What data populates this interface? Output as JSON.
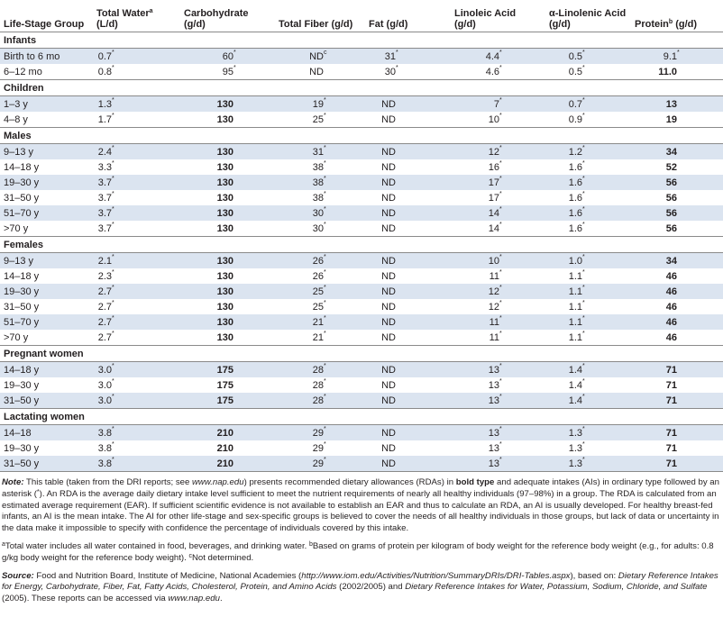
{
  "table": {
    "header": [
      {
        "text": "Life-Stage Group"
      },
      {
        "text": "Total Water",
        "sup": "a",
        "unit": "(L/d)"
      },
      {
        "text": "Carbohydrate",
        "unit": "(g/d)"
      },
      {
        "text": "Total Fiber (g/d)"
      },
      {
        "text": "Fat (g/d)"
      },
      {
        "text": "Linoleic Acid",
        "unit": "(g/d)"
      },
      {
        "text": "α-Linolenic Acid",
        "unit": "(g/d)"
      },
      {
        "text": "Protein",
        "sup": "b",
        "after": " (g/d)"
      }
    ],
    "sections": [
      {
        "title": "Infants",
        "rows": [
          {
            "group": "Birth to 6 mo",
            "cells": [
              {
                "text": "0.7",
                "sup": "*"
              },
              {
                "text": "60",
                "sup": "*"
              },
              {
                "text": "ND",
                "sup": "c"
              },
              {
                "text": "31",
                "sup": "*"
              },
              {
                "text": "4.4",
                "sup": "*"
              },
              {
                "text": "0.5",
                "sup": "*"
              },
              {
                "text": "9.1",
                "sup": "*"
              }
            ]
          },
          {
            "group": "6–12 mo",
            "cells": [
              {
                "text": "0.8",
                "sup": "*"
              },
              {
                "text": "95",
                "sup": "*"
              },
              {
                "text": "ND"
              },
              {
                "text": "30",
                "sup": "*"
              },
              {
                "text": "4.6",
                "sup": "*"
              },
              {
                "text": "0.5",
                "sup": "*"
              },
              {
                "text": "11.0",
                "bold": true
              }
            ]
          }
        ]
      },
      {
        "title": "Children",
        "rows": [
          {
            "group": "1–3 y",
            "cells": [
              {
                "text": "1.3",
                "sup": "*"
              },
              {
                "text": "130",
                "bold": true
              },
              {
                "text": "19",
                "sup": "*"
              },
              {
                "text": "ND"
              },
              {
                "text": "7",
                "sup": "*"
              },
              {
                "text": "0.7",
                "sup": "*"
              },
              {
                "text": "13",
                "bold": true
              }
            ]
          },
          {
            "group": "4–8 y",
            "cells": [
              {
                "text": "1.7",
                "sup": "*"
              },
              {
                "text": "130",
                "bold": true
              },
              {
                "text": "25",
                "sup": "*"
              },
              {
                "text": "ND"
              },
              {
                "text": "10",
                "sup": "*"
              },
              {
                "text": "0.9",
                "sup": "*"
              },
              {
                "text": "19",
                "bold": true
              }
            ]
          }
        ]
      },
      {
        "title": "Males",
        "rows": [
          {
            "group": "9–13 y",
            "cells": [
              {
                "text": "2.4",
                "sup": "*"
              },
              {
                "text": "130",
                "bold": true
              },
              {
                "text": "31",
                "sup": "*"
              },
              {
                "text": "ND"
              },
              {
                "text": "12",
                "sup": "*"
              },
              {
                "text": "1.2",
                "sup": "*"
              },
              {
                "text": "34",
                "bold": true
              }
            ]
          },
          {
            "group": "14–18 y",
            "cells": [
              {
                "text": "3.3",
                "sup": "*"
              },
              {
                "text": "130",
                "bold": true
              },
              {
                "text": "38",
                "sup": "*"
              },
              {
                "text": "ND"
              },
              {
                "text": "16",
                "sup": "*"
              },
              {
                "text": "1.6",
                "sup": "*"
              },
              {
                "text": "52",
                "bold": true
              }
            ]
          },
          {
            "group": "19–30 y",
            "cells": [
              {
                "text": "3.7",
                "sup": "*"
              },
              {
                "text": "130",
                "bold": true
              },
              {
                "text": "38",
                "sup": "*"
              },
              {
                "text": "ND"
              },
              {
                "text": "17",
                "sup": "*"
              },
              {
                "text": "1.6",
                "sup": "*"
              },
              {
                "text": "56",
                "bold": true
              }
            ]
          },
          {
            "group": "31–50 y",
            "cells": [
              {
                "text": "3.7",
                "sup": "*"
              },
              {
                "text": "130",
                "bold": true
              },
              {
                "text": "38",
                "sup": "*"
              },
              {
                "text": "ND"
              },
              {
                "text": "17",
                "sup": "*"
              },
              {
                "text": "1.6",
                "sup": "*"
              },
              {
                "text": "56",
                "bold": true
              }
            ]
          },
          {
            "group": "51–70 y",
            "cells": [
              {
                "text": "3.7",
                "sup": "*"
              },
              {
                "text": "130",
                "bold": true
              },
              {
                "text": "30",
                "sup": "*"
              },
              {
                "text": "ND"
              },
              {
                "text": "14",
                "sup": "*"
              },
              {
                "text": "1.6",
                "sup": "*"
              },
              {
                "text": "56",
                "bold": true
              }
            ]
          },
          {
            "group": ">70 y",
            "cells": [
              {
                "text": "3.7",
                "sup": "*"
              },
              {
                "text": "130",
                "bold": true
              },
              {
                "text": "30",
                "sup": "*"
              },
              {
                "text": "ND"
              },
              {
                "text": "14",
                "sup": "*"
              },
              {
                "text": "1.6",
                "sup": "*"
              },
              {
                "text": "56",
                "bold": true
              }
            ]
          }
        ]
      },
      {
        "title": "Females",
        "rows": [
          {
            "group": "9–13 y",
            "cells": [
              {
                "text": "2.1",
                "sup": "*"
              },
              {
                "text": "130",
                "bold": true
              },
              {
                "text": "26",
                "sup": "*"
              },
              {
                "text": "ND"
              },
              {
                "text": "10",
                "sup": "*"
              },
              {
                "text": "1.0",
                "sup": "*"
              },
              {
                "text": "34",
                "bold": true
              }
            ]
          },
          {
            "group": "14–18 y",
            "cells": [
              {
                "text": "2.3",
                "sup": "*"
              },
              {
                "text": "130",
                "bold": true
              },
              {
                "text": "26",
                "sup": "*"
              },
              {
                "text": "ND"
              },
              {
                "text": "11",
                "sup": "*"
              },
              {
                "text": "1.1",
                "sup": "*"
              },
              {
                "text": "46",
                "bold": true
              }
            ]
          },
          {
            "group": "19–30 y",
            "cells": [
              {
                "text": "2.7",
                "sup": "*"
              },
              {
                "text": "130",
                "bold": true
              },
              {
                "text": "25",
                "sup": "*"
              },
              {
                "text": "ND"
              },
              {
                "text": "12",
                "sup": "*"
              },
              {
                "text": "1.1",
                "sup": "*"
              },
              {
                "text": "46",
                "bold": true
              }
            ]
          },
          {
            "group": "31–50 y",
            "cells": [
              {
                "text": "2.7",
                "sup": "*"
              },
              {
                "text": "130",
                "bold": true
              },
              {
                "text": "25",
                "sup": "*"
              },
              {
                "text": "ND"
              },
              {
                "text": "12",
                "sup": "*"
              },
              {
                "text": "1.1",
                "sup": "*"
              },
              {
                "text": "46",
                "bold": true
              }
            ]
          },
          {
            "group": "51–70 y",
            "cells": [
              {
                "text": "2.7",
                "sup": "*"
              },
              {
                "text": "130",
                "bold": true
              },
              {
                "text": "21",
                "sup": "*"
              },
              {
                "text": "ND"
              },
              {
                "text": "11",
                "sup": "*"
              },
              {
                "text": "1.1",
                "sup": "*"
              },
              {
                "text": "46",
                "bold": true
              }
            ]
          },
          {
            "group": ">70 y",
            "cells": [
              {
                "text": "2.7",
                "sup": "*"
              },
              {
                "text": "130",
                "bold": true
              },
              {
                "text": "21",
                "sup": "*"
              },
              {
                "text": "ND"
              },
              {
                "text": "11",
                "sup": "*"
              },
              {
                "text": "1.1",
                "sup": "*"
              },
              {
                "text": "46",
                "bold": true
              }
            ]
          }
        ]
      },
      {
        "title": "Pregnant women",
        "rows": [
          {
            "group": "14–18 y",
            "cells": [
              {
                "text": "3.0",
                "sup": "*"
              },
              {
                "text": "175",
                "bold": true
              },
              {
                "text": "28",
                "sup": "*"
              },
              {
                "text": "ND"
              },
              {
                "text": "13",
                "sup": "*"
              },
              {
                "text": "1.4",
                "sup": "*"
              },
              {
                "text": "71",
                "bold": true
              }
            ]
          },
          {
            "group": "19–30 y",
            "cells": [
              {
                "text": "3.0",
                "sup": "*"
              },
              {
                "text": "175",
                "bold": true
              },
              {
                "text": "28",
                "sup": "*"
              },
              {
                "text": "ND"
              },
              {
                "text": "13",
                "sup": "*"
              },
              {
                "text": "1.4",
                "sup": "*"
              },
              {
                "text": "71",
                "bold": true
              }
            ]
          },
          {
            "group": "31–50 y",
            "cells": [
              {
                "text": "3.0",
                "sup": "*"
              },
              {
                "text": "175",
                "bold": true
              },
              {
                "text": "28",
                "sup": "*"
              },
              {
                "text": "ND"
              },
              {
                "text": "13",
                "sup": "*"
              },
              {
                "text": "1.4",
                "sup": "*"
              },
              {
                "text": "71",
                "bold": true
              }
            ]
          }
        ]
      },
      {
        "title": "Lactating women",
        "rows": [
          {
            "group": "14–18",
            "cells": [
              {
                "text": "3.8",
                "sup": "*"
              },
              {
                "text": "210",
                "bold": true
              },
              {
                "text": "29",
                "sup": "*"
              },
              {
                "text": "ND"
              },
              {
                "text": "13",
                "sup": "*"
              },
              {
                "text": "1.3",
                "sup": "*"
              },
              {
                "text": "71",
                "bold": true
              }
            ]
          },
          {
            "group": "19–30 y",
            "cells": [
              {
                "text": "3.8",
                "sup": "*"
              },
              {
                "text": "210",
                "bold": true
              },
              {
                "text": "29",
                "sup": "*"
              },
              {
                "text": "ND"
              },
              {
                "text": "13",
                "sup": "*"
              },
              {
                "text": "1.3",
                "sup": "*"
              },
              {
                "text": "71",
                "bold": true
              }
            ]
          },
          {
            "group": "31–50 y",
            "cells": [
              {
                "text": "3.8",
                "sup": "*"
              },
              {
                "text": "210",
                "bold": true
              },
              {
                "text": "29",
                "sup": "*"
              },
              {
                "text": "ND"
              },
              {
                "text": "13",
                "sup": "*"
              },
              {
                "text": "1.3",
                "sup": "*"
              },
              {
                "text": "71",
                "bold": true
              }
            ]
          }
        ]
      }
    ]
  },
  "notes": [
    [
      {
        "text": "Note:",
        "style": "bi"
      },
      {
        "text": " This table (taken from the DRI reports; see "
      },
      {
        "text": "www.nap.edu",
        "style": "i"
      },
      {
        "text": ") presents recommended dietary allowances (RDAs) in "
      },
      {
        "text": "bold type",
        "style": "b"
      },
      {
        "text": " and adequate intakes (AIs) in ordinary type followed by an asterisk ("
      },
      {
        "text": "*",
        "style": "sup"
      },
      {
        "text": "). An RDA is the average daily dietary intake level sufficient to meet the nutrient requirements of nearly all healthy individuals (97–98%) in a group. The RDA is calculated from an estimated average requirement (EAR). If sufficient scientific evidence is not available to establish an EAR and thus to calculate an RDA, an AI is usually developed. For healthy breast-fed infants, an AI is the mean intake. The AI for other life-stage and sex-specific groups is believed to cover the needs of all healthy individuals in those groups, but lack of data or uncertainty in the data make it impossible to specify with confidence the percentage of individuals covered by this intake."
      }
    ],
    [
      {
        "text": "a",
        "style": "sup"
      },
      {
        "text": "Total water includes all water contained in food, beverages, and drinking water.  "
      },
      {
        "text": "b",
        "style": "sup"
      },
      {
        "text": "Based on grams of protein per kilogram of body weight for the reference body weight (e.g., for adults: 0.8 g/kg body weight for the reference body weight).  "
      },
      {
        "text": "c",
        "style": "sup"
      },
      {
        "text": "Not determined."
      }
    ],
    [
      {
        "text": "Source:",
        "style": "bi"
      },
      {
        "text": " Food and Nutrition Board, Institute of Medicine, National Academies ("
      },
      {
        "text": "http://www.iom.edu/Activities/Nutrition/SummaryDRIs/DRI-Tables.aspx",
        "style": "i"
      },
      {
        "text": "), based on: "
      },
      {
        "text": "Dietary Reference Intakes for Energy, Carbohydrate, Fiber, Fat, Fatty Acids, Cholesterol, Protein, and Amino Acids",
        "style": "i"
      },
      {
        "text": " (2002/2005) and "
      },
      {
        "text": "Dietary Reference Intakes for Water, Potassium, Sodium, Chloride, and Sulfate",
        "style": "i"
      },
      {
        "text": " (2005). These reports can be accessed via "
      },
      {
        "text": "www.nap.edu",
        "style": "i"
      },
      {
        "text": "."
      }
    ]
  ]
}
